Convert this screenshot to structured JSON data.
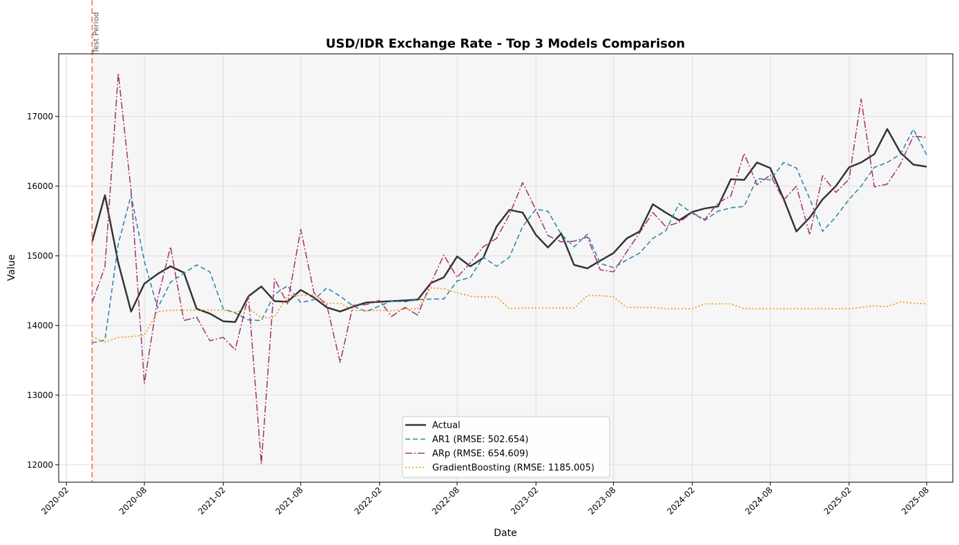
{
  "chart_data": {
    "type": "line",
    "title": "USD/IDR Exchange Rate - Top 3 Models Comparison",
    "xlabel": "Date",
    "ylabel": "Value",
    "xlim": [
      "2020-01-14",
      "2025-10-01"
    ],
    "ylim": [
      11750,
      17900
    ],
    "x_ticks": [
      "2020-02",
      "2020-08",
      "2021-02",
      "2021-08",
      "2022-02",
      "2022-08",
      "2023-02",
      "2023-08",
      "2024-02",
      "2024-08",
      "2025-02",
      "2025-08"
    ],
    "y_ticks": [
      12000,
      13000,
      14000,
      15000,
      16000,
      17000
    ],
    "grid": true,
    "legend_position": "bottom-center",
    "shaded_region": [
      "2020-04",
      "2025-08"
    ],
    "test_period_marker": {
      "x": "2020-04",
      "label": "Test Period",
      "color": "#ff6666"
    },
    "x": [
      "2020-04",
      "2020-05",
      "2020-06",
      "2020-07",
      "2020-08",
      "2020-09",
      "2020-10",
      "2020-11",
      "2020-12",
      "2021-01",
      "2021-02",
      "2021-03",
      "2021-04",
      "2021-05",
      "2021-06",
      "2021-07",
      "2021-08",
      "2021-09",
      "2021-10",
      "2021-11",
      "2021-12",
      "2022-01",
      "2022-02",
      "2022-03",
      "2022-04",
      "2022-05",
      "2022-06",
      "2022-07",
      "2022-08",
      "2022-09",
      "2022-10",
      "2022-11",
      "2022-12",
      "2023-01",
      "2023-02",
      "2023-03",
      "2023-04",
      "2023-05",
      "2023-06",
      "2023-07",
      "2023-08",
      "2023-09",
      "2023-10",
      "2023-11",
      "2023-12",
      "2024-01",
      "2024-02",
      "2024-03",
      "2024-04",
      "2024-05",
      "2024-06",
      "2024-07",
      "2024-08",
      "2024-09",
      "2024-10",
      "2024-11",
      "2024-12",
      "2025-01",
      "2025-02",
      "2025-03",
      "2025-04",
      "2025-05",
      "2025-06",
      "2025-07",
      "2025-08"
    ],
    "series": [
      {
        "name": "Actual",
        "color": "#333333",
        "dash": "solid",
        "width": 2.5,
        "values": [
          15200,
          15870,
          14900,
          14200,
          14600,
          14740,
          14850,
          14760,
          14240,
          14170,
          14060,
          14050,
          14420,
          14560,
          14350,
          14340,
          14510,
          14400,
          14260,
          14200,
          14270,
          14330,
          14340,
          14350,
          14360,
          14370,
          14610,
          14690,
          14990,
          14850,
          14970,
          15420,
          15660,
          15620,
          15300,
          15120,
          15320,
          14870,
          14820,
          14930,
          15040,
          15250,
          15350,
          15740,
          15620,
          15510,
          15630,
          15680,
          15710,
          16100,
          16090,
          16340,
          16260,
          15820,
          15350,
          15550,
          15810,
          16000,
          16270,
          16340,
          16460,
          16820,
          16480,
          16310,
          16280
        ]
      },
      {
        "name": "AR1 (RMSE: 502.654)",
        "color": "#2e86ab",
        "dash": "7,4",
        "width": 1.6,
        "values": [
          13750,
          13790,
          15170,
          15870,
          14920,
          14250,
          14620,
          14750,
          14870,
          14770,
          14240,
          14180,
          14080,
          14070,
          14450,
          14570,
          14330,
          14370,
          14540,
          14420,
          14280,
          14200,
          14280,
          14350,
          14340,
          14370,
          14380,
          14380,
          14640,
          14690,
          14980,
          14850,
          14980,
          15420,
          15670,
          15640,
          15310,
          15130,
          15310,
          14890,
          14830,
          14940,
          15040,
          15250,
          15360,
          15750,
          15610,
          15510,
          15640,
          15690,
          15710,
          16110,
          16090,
          16340,
          16260,
          15820,
          15350,
          15560,
          15810,
          16000,
          16270,
          16340,
          16460,
          16820,
          16450
        ]
      },
      {
        "name": "ARp (RMSE: 654.609)",
        "color": "#a23b72",
        "dash": "10,3,2,3",
        "width": 1.6,
        "values": [
          14330,
          14840,
          17620,
          15930,
          13170,
          14380,
          15130,
          14070,
          14120,
          13780,
          13830,
          13650,
          14430,
          12010,
          14670,
          14310,
          15380,
          14470,
          14290,
          13470,
          14290,
          14300,
          14360,
          14130,
          14260,
          14150,
          14610,
          15010,
          14690,
          14900,
          15130,
          15250,
          15590,
          16050,
          15660,
          15290,
          15200,
          15210,
          15270,
          14800,
          14770,
          15060,
          15330,
          15620,
          15420,
          15480,
          15620,
          15520,
          15760,
          15860,
          16470,
          16020,
          16160,
          15800,
          16000,
          15300,
          16150,
          15910,
          16100,
          17250,
          15990,
          16030,
          16320,
          16720,
          16700
        ]
      },
      {
        "name": "GradientBoosting (RMSE: 1185.005)",
        "color": "#f18f01",
        "dash": "2,3",
        "width": 1.6,
        "values": [
          13840,
          13760,
          13830,
          13840,
          13860,
          14200,
          14220,
          14220,
          14220,
          14220,
          14220,
          14190,
          14250,
          14110,
          14120,
          14430,
          14430,
          14440,
          14320,
          14320,
          14220,
          14210,
          14220,
          14210,
          14240,
          14240,
          14540,
          14530,
          14470,
          14420,
          14410,
          14410,
          14240,
          14250,
          14250,
          14250,
          14250,
          14250,
          14430,
          14430,
          14410,
          14260,
          14260,
          14260,
          14240,
          14240,
          14240,
          14310,
          14310,
          14310,
          14240,
          14240,
          14240,
          14240,
          14240,
          14240,
          14240,
          14240,
          14240,
          14260,
          14280,
          14270,
          14340,
          14320,
          14310
        ]
      }
    ]
  }
}
